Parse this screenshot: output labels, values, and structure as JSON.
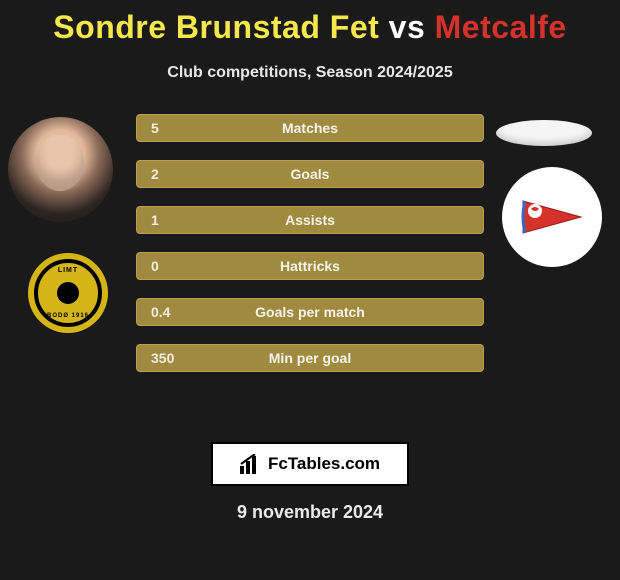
{
  "title": {
    "left": "Sondre Brunstad Fet",
    "sep": "vs",
    "right": "Metcalfe",
    "color_left": "#f5e74c",
    "color_sep": "#ffffff",
    "color_right": "#d4322a",
    "fontsize": 32
  },
  "subtitle": "Club competitions, Season 2024/2025",
  "stats": [
    {
      "label": "Matches",
      "value": "5"
    },
    {
      "label": "Goals",
      "value": "2"
    },
    {
      "label": "Assists",
      "value": "1"
    },
    {
      "label": "Hattricks",
      "value": "0"
    },
    {
      "label": "Goals per match",
      "value": "0.4"
    },
    {
      "label": "Min per goal",
      "value": "350"
    }
  ],
  "brand": "FcTables.com",
  "date": "9 november 2024",
  "colors": {
    "bar_fill": "#a08a3f",
    "bar_border": "#b8a050",
    "background": "#1a1a1a",
    "club_left_bg": "#d4b416",
    "club_right_pennant": "#d4322a"
  },
  "club_left": {
    "top_text": "LIMT",
    "bottom_text": "BODØ 1916"
  }
}
